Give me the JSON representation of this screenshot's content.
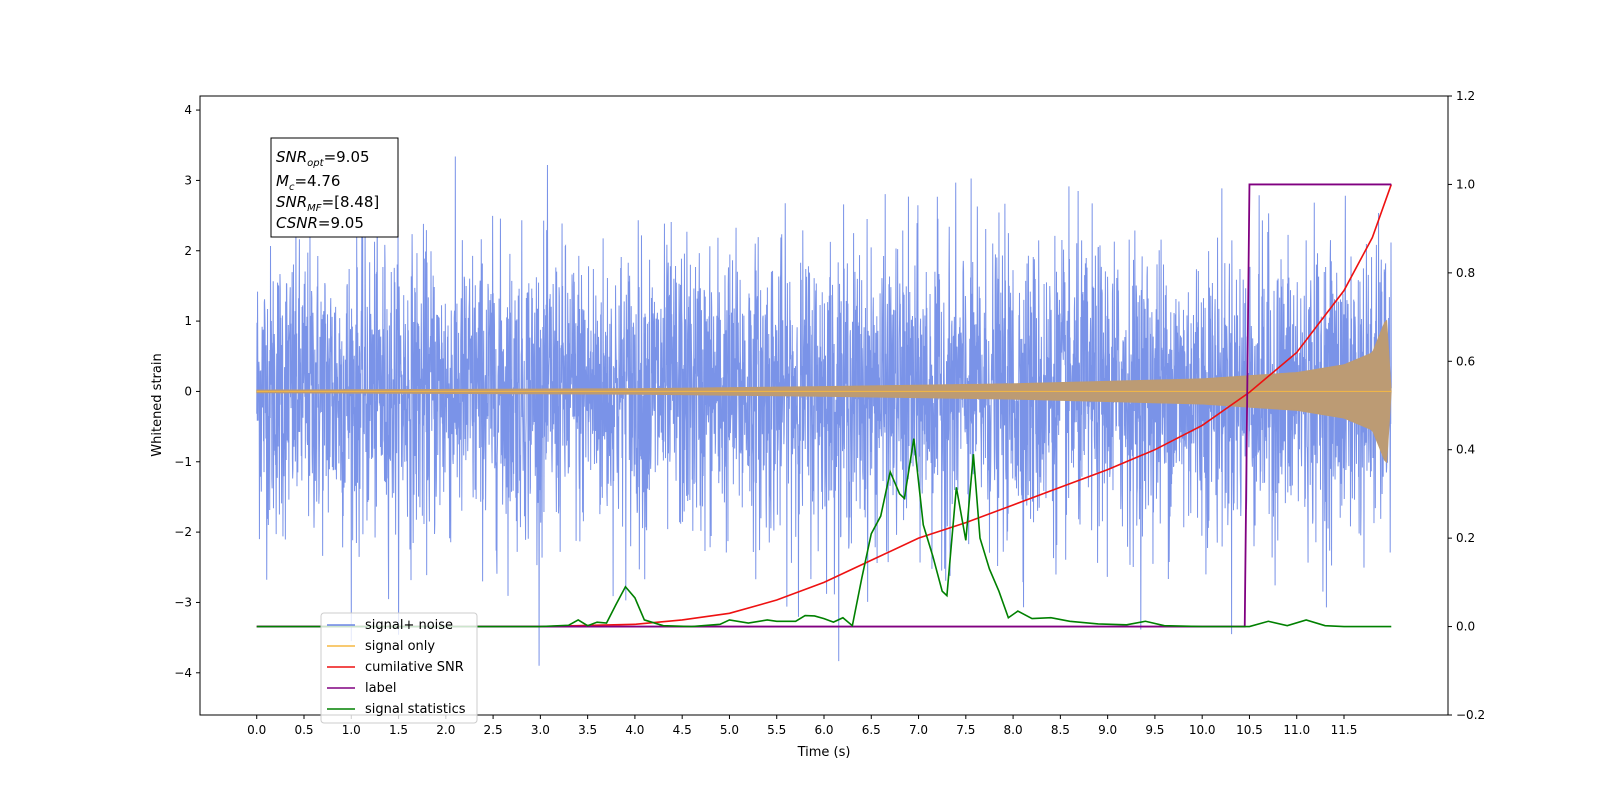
{
  "chart_data": {
    "type": "line",
    "title": "",
    "xlabel": "Time (s)",
    "ylabel": "Whitened strain",
    "ylabel_right": "",
    "xlim": [
      -0.6,
      12.6
    ],
    "ylim": [
      -4.6,
      4.2
    ],
    "ylim_right": [
      -0.2,
      1.2
    ],
    "x_ticks": [
      "0.0",
      "0.5",
      "1.0",
      "1.5",
      "2.0",
      "2.5",
      "3.0",
      "3.5",
      "4.0",
      "4.5",
      "5.0",
      "5.5",
      "6.0",
      "6.5",
      "7.0",
      "7.5",
      "8.0",
      "8.5",
      "9.0",
      "9.5",
      "10.0",
      "10.5",
      "11.0",
      "11.5"
    ],
    "y_ticks": [
      "4",
      "3",
      "2",
      "1",
      "0",
      "−1",
      "−2",
      "−3",
      "−4"
    ],
    "y_ticks_right": [
      "1.2",
      "1.0",
      "0.8",
      "0.6",
      "0.4",
      "0.2",
      "0.0",
      "−0.2"
    ],
    "grid": false,
    "legend_position": "lower-left",
    "annotation": {
      "snr_opt": {
        "base": "SNR",
        "sub": "opt",
        "value": "=9.05"
      },
      "mc": {
        "base": "M",
        "sub": "c",
        "value": "=4.76"
      },
      "snr_mf": {
        "base": "SNR",
        "sub": "MF",
        "value": "=[8.48]"
      },
      "csnr": {
        "base": "CSNR",
        "sub": "",
        "value": "=9.05"
      }
    },
    "series": [
      {
        "name": "signal+ noise",
        "axis": "left",
        "color": "#6b87e6",
        "x_range": [
          0.0,
          12.0
        ],
        "noise_std": 1.0,
        "peak_max": 3.85,
        "peak_min": -4.12
      },
      {
        "name": "signal only",
        "axis": "left",
        "color": "#f5b942",
        "fill_color": "#bc9b74",
        "x_range": [
          0.0,
          12.0
        ],
        "envelope": {
          "x": [
            0,
            4,
            6,
            8,
            10,
            11,
            11.5,
            11.8,
            11.95,
            12.0
          ],
          "y": [
            0.02,
            0.04,
            0.07,
            0.11,
            0.18,
            0.27,
            0.38,
            0.55,
            1.05,
            0.0
          ]
        }
      },
      {
        "name": "cumilative SNR",
        "axis": "right",
        "color": "#ee1111",
        "x": [
          0,
          3,
          4,
          4.5,
          5,
          5.5,
          6,
          6.5,
          7,
          7.5,
          8,
          8.5,
          9,
          9.5,
          10,
          10.5,
          11,
          11.5,
          11.8,
          12.0
        ],
        "y": [
          0,
          0.0,
          0.005,
          0.015,
          0.03,
          0.06,
          0.1,
          0.15,
          0.2,
          0.235,
          0.275,
          0.315,
          0.355,
          0.4,
          0.455,
          0.53,
          0.62,
          0.76,
          0.88,
          1.0
        ]
      },
      {
        "name": "label",
        "axis": "right",
        "color": "#800080",
        "x": [
          0,
          10.45,
          10.5,
          12.0
        ],
        "y": [
          0,
          0,
          1,
          1
        ]
      },
      {
        "name": "signal statistics",
        "axis": "right",
        "color": "#008000",
        "x": [
          0,
          3.0,
          3.3,
          3.4,
          3.5,
          3.6,
          3.7,
          3.8,
          3.9,
          4.0,
          4.1,
          4.3,
          4.6,
          4.9,
          5.0,
          5.2,
          5.4,
          5.5,
          5.7,
          5.8,
          5.9,
          6.0,
          6.1,
          6.2,
          6.3,
          6.4,
          6.5,
          6.6,
          6.7,
          6.8,
          6.85,
          6.95,
          7.05,
          7.15,
          7.25,
          7.3,
          7.4,
          7.5,
          7.58,
          7.65,
          7.75,
          7.85,
          7.95,
          8.05,
          8.2,
          8.4,
          8.6,
          8.9,
          9.2,
          9.4,
          9.6,
          10.0,
          10.5,
          10.7,
          10.9,
          11.1,
          11.3,
          11.5,
          12.0
        ],
        "y": [
          0,
          0.0,
          0.003,
          0.015,
          0.002,
          0.01,
          0.008,
          0.05,
          0.09,
          0.065,
          0.015,
          0.002,
          0.0,
          0.005,
          0.015,
          0.008,
          0.015,
          0.012,
          0.012,
          0.025,
          0.024,
          0.018,
          0.01,
          0.02,
          0.002,
          0.11,
          0.21,
          0.25,
          0.35,
          0.3,
          0.29,
          0.425,
          0.23,
          0.16,
          0.08,
          0.07,
          0.315,
          0.195,
          0.39,
          0.2,
          0.13,
          0.08,
          0.02,
          0.035,
          0.018,
          0.02,
          0.012,
          0.006,
          0.004,
          0.012,
          0.002,
          0.0,
          0.0,
          0.012,
          0.002,
          0.015,
          0.002,
          0.0,
          0.0
        ]
      }
    ],
    "legend": [
      {
        "label": "signal+ noise",
        "color": "#6b87e6"
      },
      {
        "label": "signal only",
        "color": "#f5b942"
      },
      {
        "label": "cumilative SNR",
        "color": "#ee1111"
      },
      {
        "label": "label",
        "color": "#800080"
      },
      {
        "label": "signal statistics",
        "color": "#008000"
      }
    ]
  }
}
